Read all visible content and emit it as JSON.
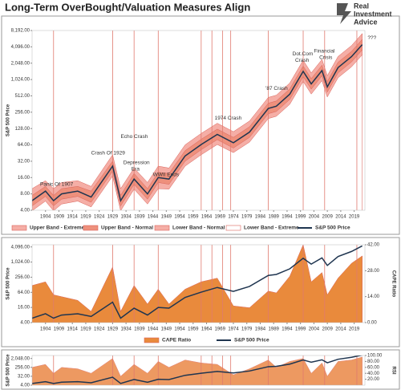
{
  "logo": [
    "Real",
    "Investment",
    "Advice"
  ],
  "event_years": [
    1907,
    1929,
    1937,
    1946,
    1962,
    1966,
    1970,
    1973,
    1987,
    2000,
    2008,
    2020
  ],
  "chart_data": [
    {
      "type": "line",
      "title": "Long-Term OverBought/Valuation Measures Align",
      "ylabel": "S&P 500 Price",
      "log_y": true,
      "xlim": [
        1899,
        2023
      ],
      "xticks": [
        1904,
        1909,
        1914,
        1919,
        1924,
        1929,
        1934,
        1939,
        1944,
        1949,
        1954,
        1959,
        1964,
        1969,
        1974,
        1979,
        1984,
        1989,
        1994,
        1999,
        2004,
        2009,
        2014,
        2019
      ],
      "ylim": [
        4,
        8192
      ],
      "yticks": [
        {
          "value": 4,
          "label": "4.00"
        },
        {
          "value": 8,
          "label": "8.00"
        },
        {
          "value": 16,
          "label": "16.00"
        },
        {
          "value": 32,
          "label": "32.00"
        },
        {
          "value": 64,
          "label": "64.00"
        },
        {
          "value": 128,
          "label": "128.00"
        },
        {
          "value": 256,
          "label": "256.00"
        },
        {
          "value": 512,
          "label": "512.00"
        },
        {
          "value": 1024,
          "label": "1,024.00"
        },
        {
          "value": 2048,
          "label": "2,048.00"
        },
        {
          "value": 4096,
          "label": "4,096.00"
        },
        {
          "value": 8192,
          "label": "8,192.00"
        }
      ],
      "x": [
        1899,
        1904,
        1907,
        1910,
        1916,
        1921,
        1929,
        1932,
        1937,
        1942,
        1946,
        1950,
        1956,
        1962,
        1968,
        1974,
        1980,
        1987,
        1990,
        1995,
        2000,
        2003,
        2007,
        2009,
        2013,
        2018,
        2022
      ],
      "legend": "bottom",
      "series": [
        {
          "name": "Upper Band - Extreme",
          "kind": "area",
          "color": "#f5aea6",
          "values": [
            10,
            14,
            10,
            13,
            14,
            11,
            42,
            10,
            24,
            13,
            26,
            24,
            64,
            104,
            160,
            112,
            176,
            480,
            528,
            880,
            2320,
            1360,
            2400,
            1200,
            2720,
            4320,
            7200
          ]
        },
        {
          "name": "Upper Band - Normal",
          "kind": "area",
          "color": "#ee907c",
          "values": [
            7.5,
            11,
            7.5,
            10,
            11,
            9,
            32,
            7.5,
            19,
            10,
            20,
            19,
            50,
            81,
            125,
            88,
            138,
            375,
            413,
            688,
            1813,
            1063,
            1875,
            938,
            2125,
            3375,
            5625
          ]
        },
        {
          "name": "Lower Band - Normal",
          "kind": "area",
          "color": "#f5aea6",
          "values": [
            4.8,
            7.2,
            4.8,
            6.4,
            7.2,
            5.6,
            21,
            4.8,
            12,
            6.4,
            13,
            12,
            32,
            52,
            80,
            56,
            88,
            240,
            264,
            440,
            1160,
            680,
            1200,
            600,
            1360,
            2160,
            3600
          ]
        },
        {
          "name": "Lower Band - Extreme",
          "kind": "area",
          "color": "#ffffff",
          "values": [
            3.9,
            5.9,
            3.9,
            5.2,
            5.9,
            4.6,
            17,
            3.9,
            9.8,
            5.2,
            10,
            9.8,
            26,
            42,
            65,
            46,
            72,
            195,
            215,
            358,
            943,
            553,
            975,
            488,
            1105,
            1755,
            2925
          ]
        },
        {
          "name": "S&P 500 Price",
          "kind": "line",
          "color": "#1f3550",
          "values": [
            6,
            9,
            6,
            8,
            9,
            7,
            26,
            6,
            15,
            8,
            16,
            15,
            40,
            65,
            100,
            70,
            110,
            300,
            330,
            550,
            1450,
            850,
            1500,
            750,
            1700,
            2700,
            4500
          ]
        }
      ],
      "annotations": [
        {
          "text": "Panic Of 1907",
          "x": 1902,
          "y": 12
        },
        {
          "text": "Crash Of 1929",
          "x": 1921,
          "y": 45
        },
        {
          "text": "Echo Crash",
          "x": 1932,
          "y": 90
        },
        {
          "text": "Depression",
          "x": 1933,
          "y": 30
        },
        {
          "text": "Era",
          "x": 1936,
          "y": 23
        },
        {
          "text": "WWII Ends",
          "x": 1944,
          "y": 18
        },
        {
          "text": "1974 Crash",
          "x": 1967,
          "y": 200
        },
        {
          "text": "'87 Crash",
          "x": 1986,
          "y": 700
        },
        {
          "text": "Dot.Com",
          "x": 1996,
          "y": 3000
        },
        {
          "text": "Crash",
          "x": 1997,
          "y": 2300
        },
        {
          "text": "Financial",
          "x": 2004,
          "y": 3400
        },
        {
          "text": "Crisis",
          "x": 2006,
          "y": 2600
        },
        {
          "text": "???",
          "x": 2024,
          "y": 6000
        }
      ]
    },
    {
      "type": "line",
      "ylabel": "S&P 500 Price",
      "y2label": "CAPE Ratio",
      "log_y": true,
      "xlim": [
        1899,
        2023
      ],
      "xticks": [
        1904,
        1909,
        1914,
        1919,
        1924,
        1929,
        1934,
        1939,
        1944,
        1949,
        1954,
        1959,
        1964,
        1969,
        1974,
        1979,
        1984,
        1989,
        1994,
        1999,
        2004,
        2009,
        2014,
        2019
      ],
      "ylim": [
        4,
        5000
      ],
      "yticks": [
        {
          "value": 4,
          "label": "4.00"
        },
        {
          "value": 16,
          "label": "16.00"
        },
        {
          "value": 64,
          "label": "64.00"
        },
        {
          "value": 256,
          "label": "256.00"
        },
        {
          "value": 1024,
          "label": "1,024.00"
        },
        {
          "value": 4096,
          "label": "4,096.00"
        }
      ],
      "y2lim": [
        0,
        42
      ],
      "y2ticks": [
        {
          "value": 0,
          "label": "0.00"
        },
        {
          "value": 14,
          "label": "14.00"
        },
        {
          "value": 28,
          "label": "28.00"
        },
        {
          "value": 42,
          "label": "42.00"
        }
      ],
      "x": [
        1899,
        1904,
        1907,
        1910,
        1916,
        1921,
        1929,
        1932,
        1937,
        1942,
        1946,
        1950,
        1956,
        1962,
        1968,
        1974,
        1980,
        1987,
        1990,
        1995,
        2000,
        2003,
        2007,
        2009,
        2013,
        2018,
        2022
      ],
      "legend": "bottom",
      "series": [
        {
          "name": "CAPE Ratio",
          "kind": "area",
          "axis": "y2",
          "color": "#e98a3c",
          "values": [
            20,
            22,
            15,
            14,
            12,
            6,
            30,
            6,
            20,
            10,
            18,
            10,
            18,
            22,
            24,
            9,
            8,
            17,
            16,
            25,
            42,
            22,
            27,
            15,
            24,
            32,
            36
          ]
        },
        {
          "name": "S&P 500 Price",
          "kind": "line",
          "color": "#1f3550",
          "values": [
            6,
            9,
            6,
            8,
            9,
            7,
            26,
            6,
            15,
            8,
            16,
            15,
            40,
            65,
            100,
            70,
            110,
            300,
            330,
            550,
            1450,
            850,
            1500,
            750,
            1700,
            2700,
            4500
          ]
        }
      ]
    },
    {
      "type": "line",
      "ylabel": "S&P 500 Price",
      "y2label": "RSI",
      "log_y": true,
      "xlim": [
        1899,
        2023
      ],
      "ylim": [
        4,
        4096
      ],
      "yticks": [
        {
          "value": 4,
          "label": "4.00"
        },
        {
          "value": 32,
          "label": "32.00"
        },
        {
          "value": 256,
          "label": "256.00"
        },
        {
          "value": 2048,
          "label": "2,048.00"
        }
      ],
      "y2lim": [
        0,
        100
      ],
      "y2ticks": [
        {
          "value": 20,
          "label": "20.00"
        },
        {
          "value": 40,
          "label": "40.00"
        },
        {
          "value": 60,
          "label": "60.00"
        },
        {
          "value": 80,
          "label": "80.00"
        },
        {
          "value": 100,
          "label": "100.00"
        }
      ],
      "x": [
        1899,
        1904,
        1907,
        1910,
        1916,
        1921,
        1929,
        1932,
        1937,
        1942,
        1946,
        1950,
        1956,
        1962,
        1968,
        1974,
        1980,
        1987,
        1990,
        1995,
        2000,
        2003,
        2007,
        2009,
        2013,
        2018,
        2022
      ],
      "series": [
        {
          "name": "RSI",
          "kind": "area",
          "axis": "y2",
          "color": "#e9803a",
          "values": [
            60,
            70,
            40,
            60,
            55,
            40,
            90,
            30,
            70,
            40,
            80,
            60,
            85,
            75,
            70,
            35,
            55,
            85,
            60,
            80,
            90,
            40,
            75,
            30,
            80,
            85,
            95
          ]
        },
        {
          "name": "S&P 500 Price",
          "kind": "line",
          "color": "#1f3550",
          "values": [
            6,
            9,
            6,
            8,
            9,
            7,
            26,
            6,
            15,
            8,
            16,
            15,
            40,
            65,
            100,
            70,
            110,
            300,
            330,
            550,
            1450,
            850,
            1500,
            750,
            1700,
            2700,
            4500
          ]
        }
      ]
    }
  ]
}
